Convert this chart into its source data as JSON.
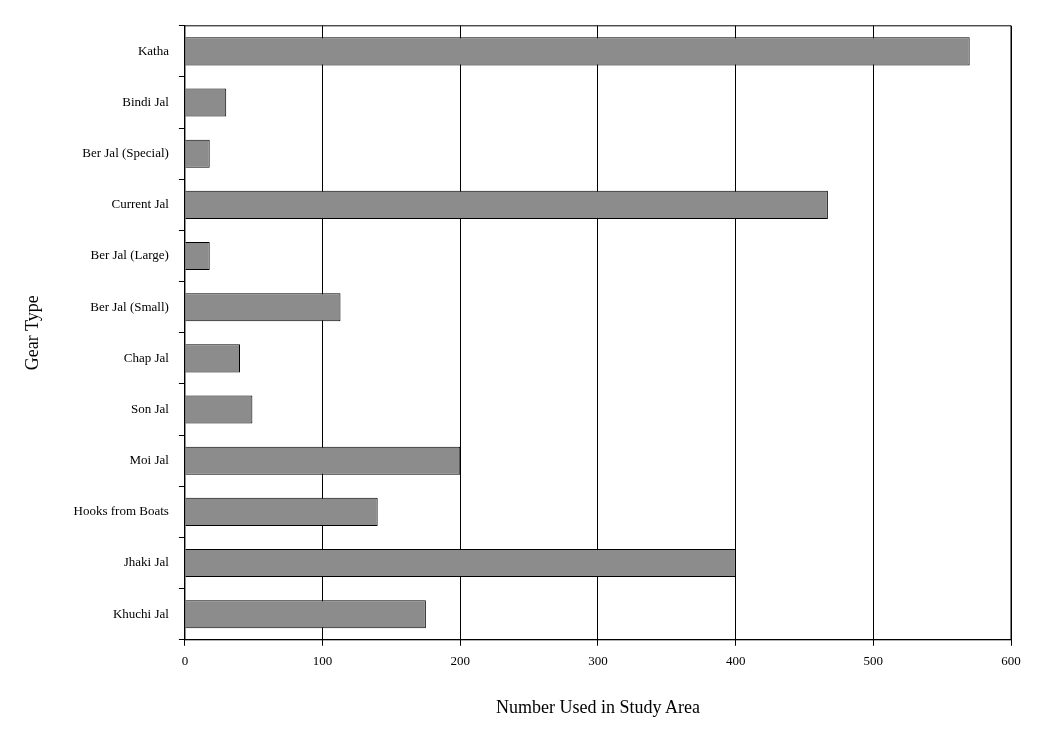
{
  "chart_data": {
    "type": "bar",
    "orientation": "horizontal",
    "categories": [
      "Katha",
      "Bindi Jal",
      "Ber Jal (Special)",
      "Current Jal",
      "Ber Jal (Large)",
      "Ber Jal (Small)",
      "Chap Jal",
      "Son Jal",
      "Moi Jal",
      "Hooks from Boats",
      "Jhaki Jal",
      "Khuchi Jal"
    ],
    "values": [
      570,
      30,
      18,
      467,
      18,
      113,
      40,
      49,
      200,
      140,
      400,
      175
    ],
    "color": "#8c8c8c",
    "xlim": [
      0,
      600
    ],
    "xticks": [
      0,
      100,
      200,
      300,
      400,
      500,
      600
    ],
    "xlabel": "Number Used in Study Area",
    "ylabel": "Gear Type",
    "grid": "x"
  }
}
